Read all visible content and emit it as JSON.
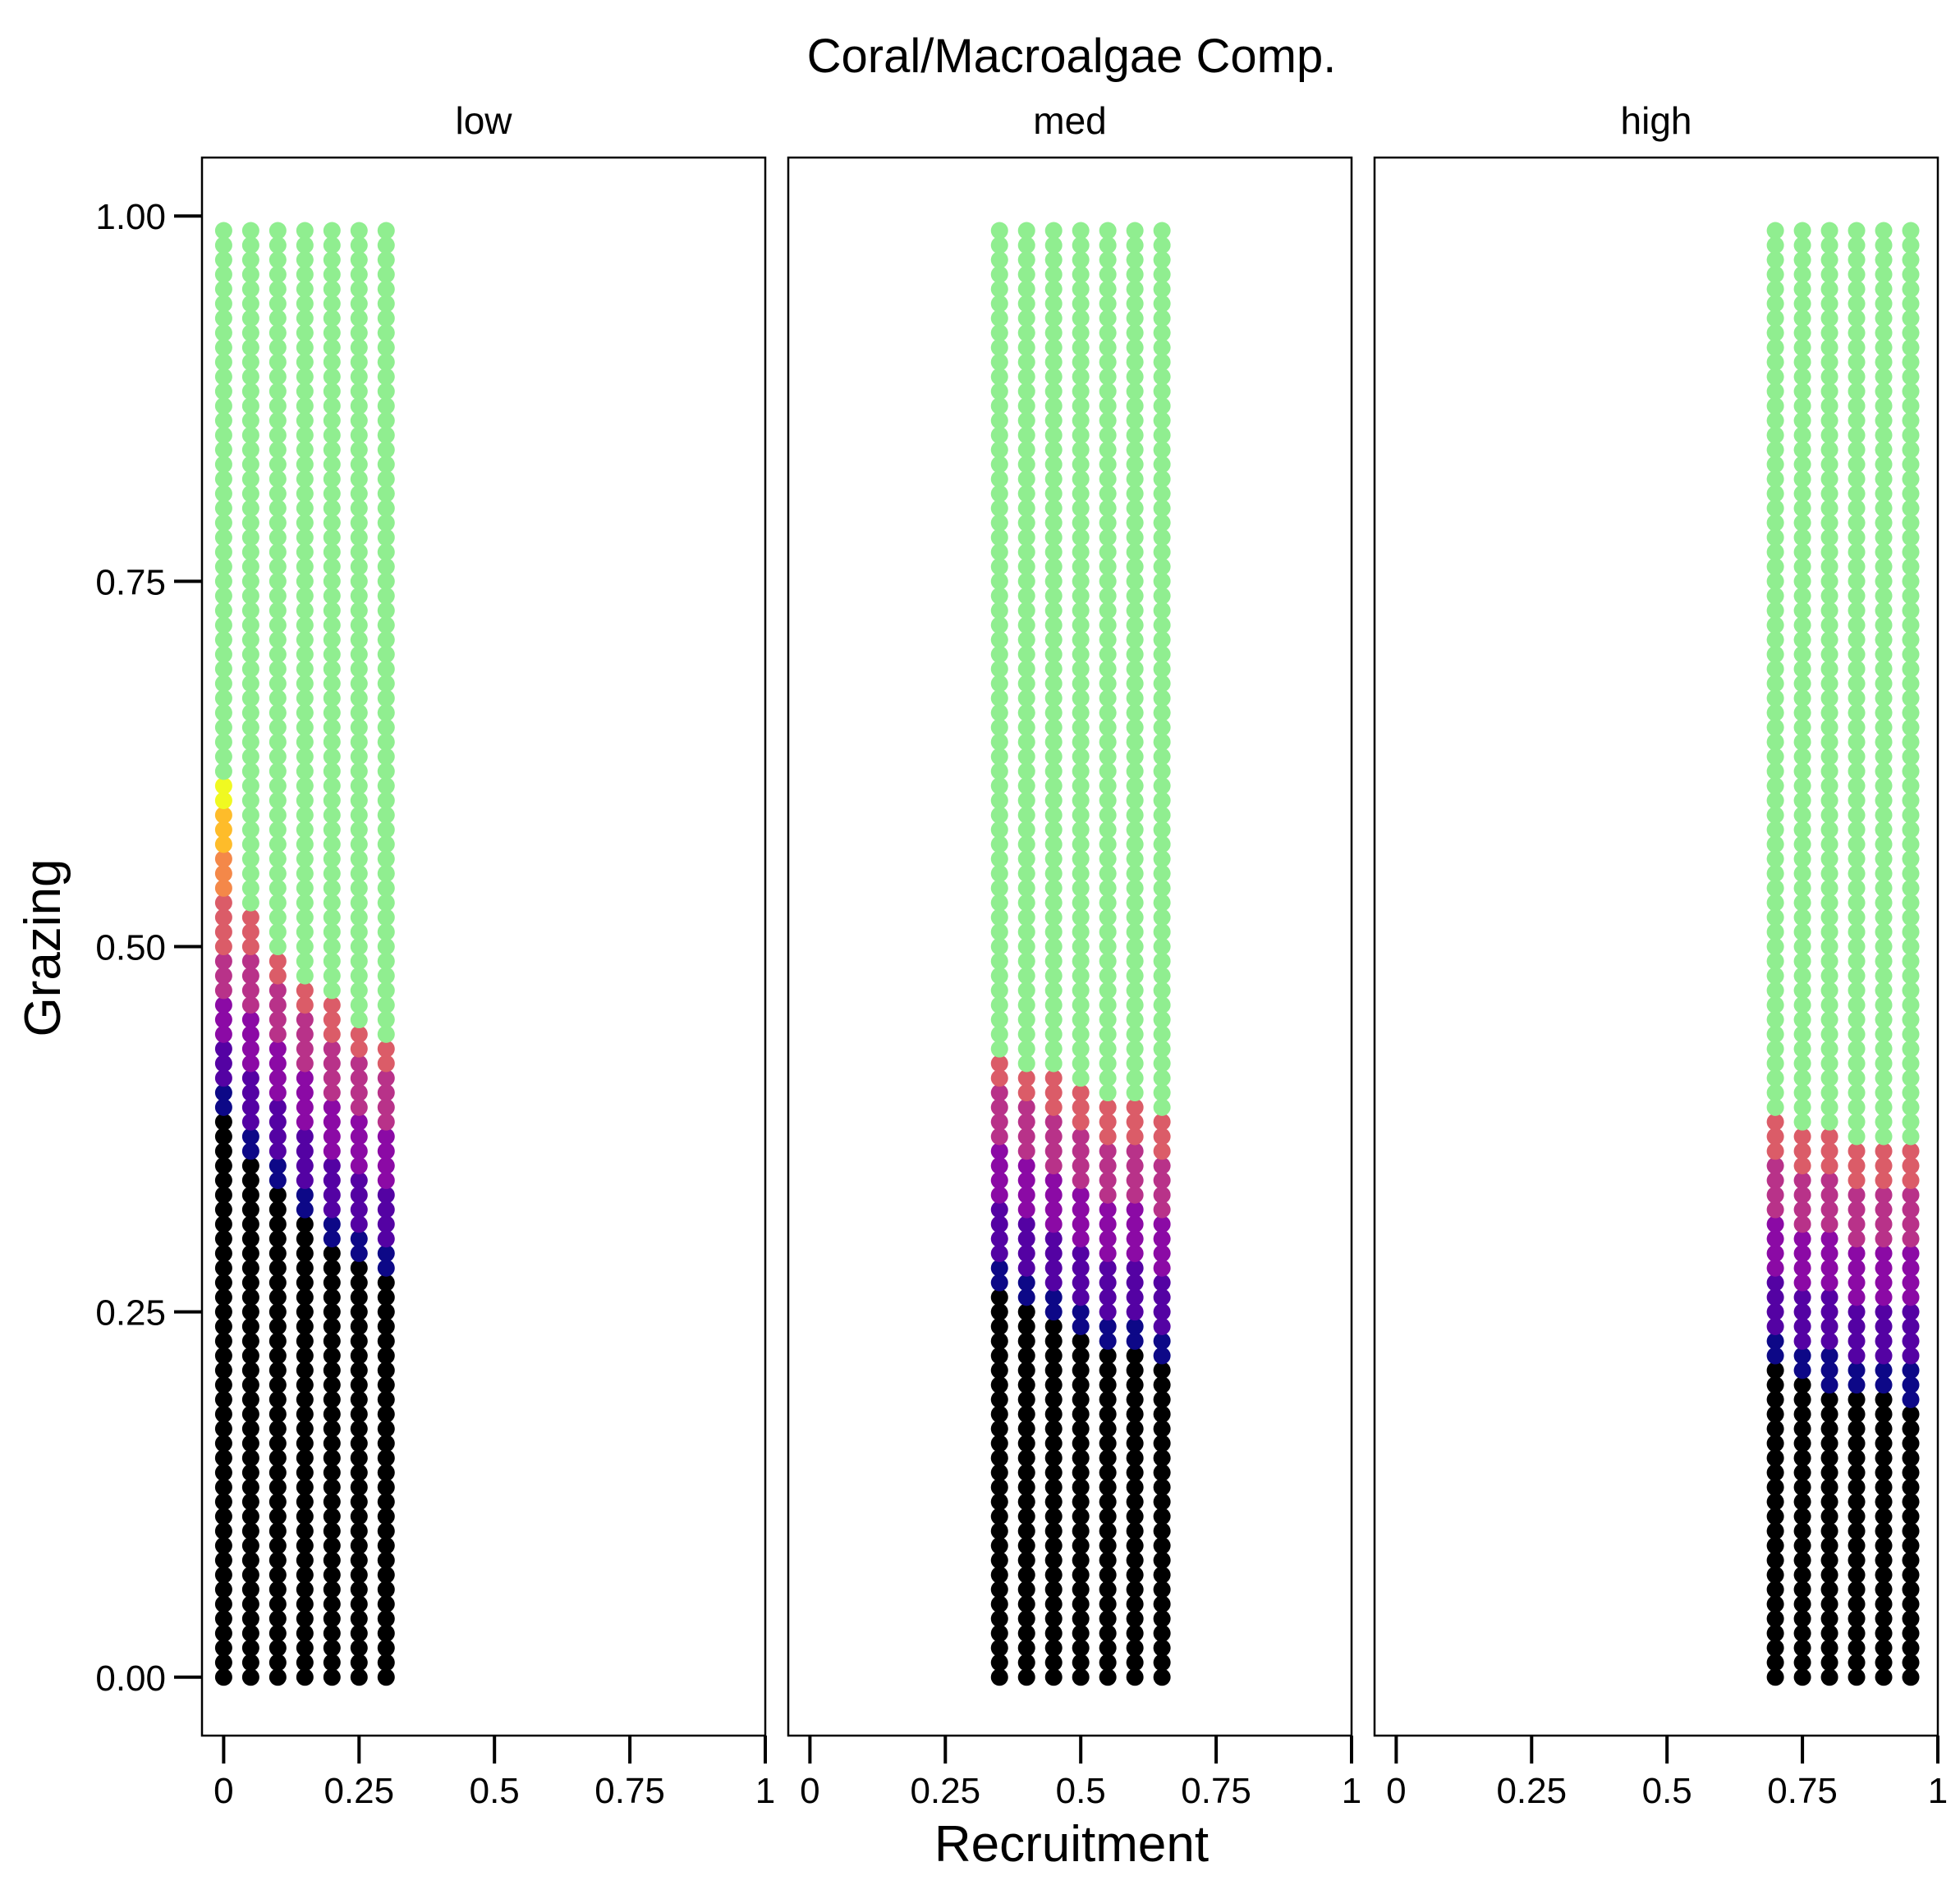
{
  "chart_data": {
    "type": "scatter",
    "title": "Coral/Macroalgae Comp.",
    "xlabel": "Recruitment",
    "ylabel": "Grazing",
    "xlim": [
      -0.04,
      1.0
    ],
    "ylim": [
      -0.04,
      1.04
    ],
    "y_ticks": [
      "0.00",
      "0.25",
      "0.50",
      "0.75",
      "1.00"
    ],
    "y_tick_values": [
      0,
      0.25,
      0.5,
      0.75,
      1.0
    ],
    "x_ticks": [
      "0",
      "0.25",
      "0.5",
      "0.75",
      "1"
    ],
    "x_tick_values": [
      0,
      0.25,
      0.5,
      0.75,
      1.0
    ],
    "grid": false,
    "y_step": 0.01,
    "y_max": 0.99,
    "colors": {
      "black": "#000000",
      "green": "#90EE90",
      "gradient": [
        "#0D0887",
        "#5402A3",
        "#8B0AA5",
        "#B83289",
        "#DB5C68",
        "#F48849",
        "#FEBC2A",
        "#F0F921"
      ]
    },
    "panels": [
      {
        "label": "low",
        "columns": [
          {
            "x": 0.0,
            "black_top": 0.38,
            "green_start": 0.62
          },
          {
            "x": 0.05,
            "black_top": 0.35,
            "green_start": 0.53
          },
          {
            "x": 0.1,
            "black_top": 0.33,
            "green_start": 0.5
          },
          {
            "x": 0.15,
            "black_top": 0.31,
            "green_start": 0.48
          },
          {
            "x": 0.2,
            "black_top": 0.29,
            "green_start": 0.47
          },
          {
            "x": 0.25,
            "black_top": 0.28,
            "green_start": 0.45
          },
          {
            "x": 0.3,
            "black_top": 0.27,
            "green_start": 0.44
          }
        ]
      },
      {
        "label": "med",
        "columns": [
          {
            "x": 0.35,
            "black_top": 0.26,
            "green_start": 0.43
          },
          {
            "x": 0.4,
            "black_top": 0.25,
            "green_start": 0.42
          },
          {
            "x": 0.45,
            "black_top": 0.24,
            "green_start": 0.42
          },
          {
            "x": 0.5,
            "black_top": 0.23,
            "green_start": 0.41
          },
          {
            "x": 0.55,
            "black_top": 0.22,
            "green_start": 0.4
          },
          {
            "x": 0.6,
            "black_top": 0.22,
            "green_start": 0.4
          },
          {
            "x": 0.65,
            "black_top": 0.21,
            "green_start": 0.39
          }
        ]
      },
      {
        "label": "high",
        "columns": [
          {
            "x": 0.7,
            "black_top": 0.21,
            "green_start": 0.39
          },
          {
            "x": 0.75,
            "black_top": 0.2,
            "green_start": 0.38
          },
          {
            "x": 0.8,
            "black_top": 0.19,
            "green_start": 0.38
          },
          {
            "x": 0.85,
            "black_top": 0.19,
            "green_start": 0.37
          },
          {
            "x": 0.9,
            "black_top": 0.19,
            "green_start": 0.37
          },
          {
            "x": 0.95,
            "black_top": 0.18,
            "green_start": 0.37
          }
        ]
      }
    ]
  }
}
